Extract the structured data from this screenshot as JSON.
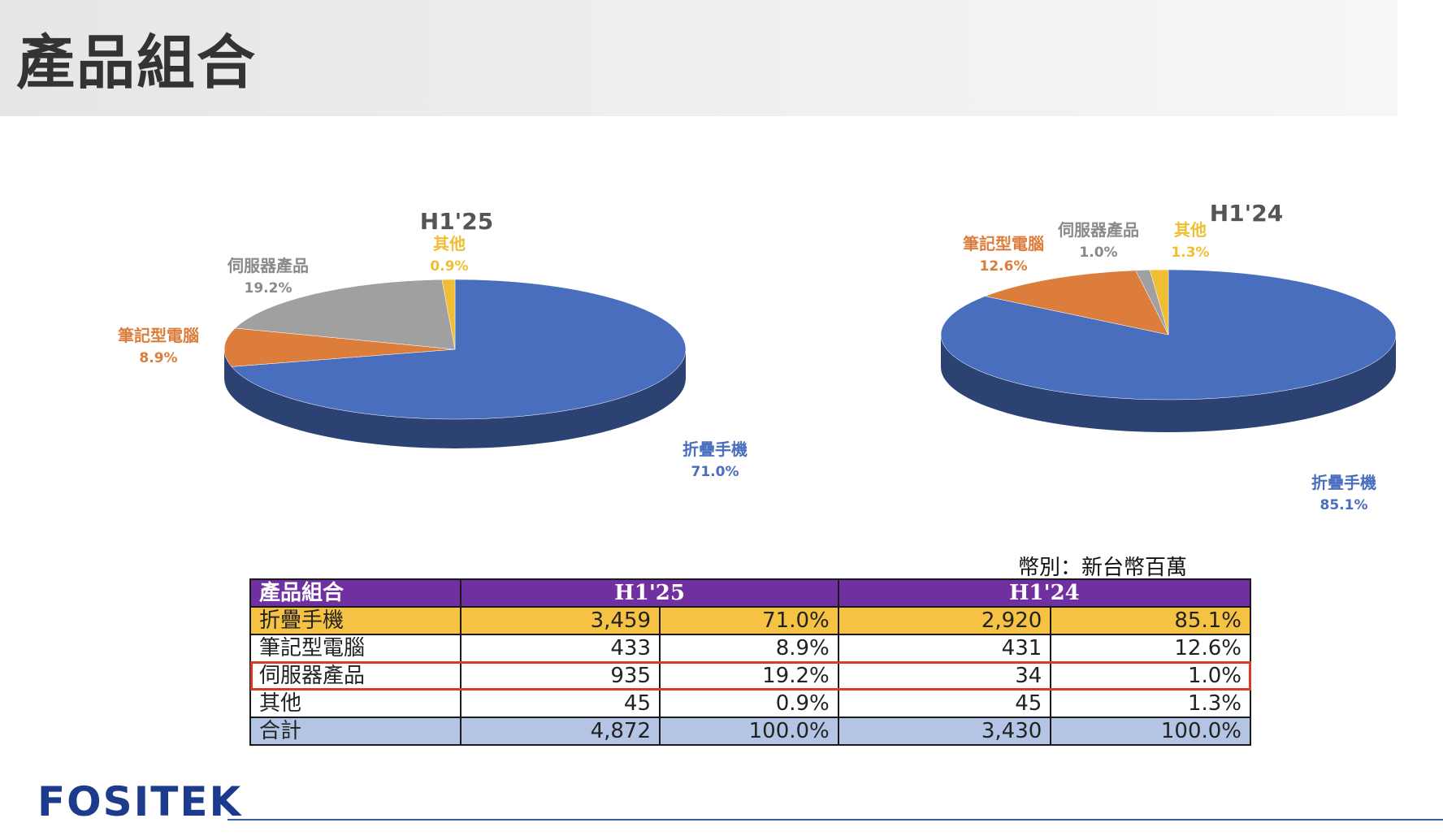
{
  "page": {
    "title": "產品組合"
  },
  "colors": {
    "foldable": "#4a6ebe",
    "notebook": "#dc7d3c",
    "server": "#a0a0a0",
    "other": "#f0be32",
    "header_purple": "#7030a0",
    "highlight_yellow": "#f5c243",
    "total_blue": "#b4c4e4",
    "highlight_box": "#d53c28"
  },
  "chart_data": [
    {
      "type": "pie",
      "title": "H1'25",
      "slices": [
        {
          "name": "折疊手機",
          "value": 71.0,
          "label": "71.0%",
          "color": "#4a6ebe"
        },
        {
          "name": "筆記型電腦",
          "value": 8.9,
          "label": "8.9%",
          "color": "#dc7d3c"
        },
        {
          "name": "伺服器產品",
          "value": 19.2,
          "label": "19.2%",
          "color": "#a0a0a0"
        },
        {
          "name": "其他",
          "value": 0.9,
          "label": "0.9%",
          "color": "#f0be32"
        }
      ]
    },
    {
      "type": "pie",
      "title": "H1'24",
      "slices": [
        {
          "name": "折疊手機",
          "value": 85.1,
          "label": "85.1%",
          "color": "#4a6ebe"
        },
        {
          "name": "筆記型電腦",
          "value": 12.6,
          "label": "12.6%",
          "color": "#dc7d3c"
        },
        {
          "name": "伺服器產品",
          "value": 1.0,
          "label": "1.0%",
          "color": "#a0a0a0"
        },
        {
          "name": "其他",
          "value": 1.3,
          "label": "1.3%",
          "color": "#f0be32"
        }
      ]
    }
  ],
  "table": {
    "unit_note": "幣別：新台幣百萬",
    "header": {
      "category": "產品組合",
      "period1": "H1'25",
      "period2": "H1'24"
    },
    "rows": [
      {
        "name": "折疊手機",
        "v1": "3,459",
        "p1": "71.0%",
        "v2": "2,920",
        "p2": "85.1%"
      },
      {
        "name": "筆記型電腦",
        "v1": "433",
        "p1": "8.9%",
        "v2": "431",
        "p2": "12.6%"
      },
      {
        "name": "伺服器產品",
        "v1": "935",
        "p1": "19.2%",
        "v2": "34",
        "p2": "1.0%"
      },
      {
        "name": "其他",
        "v1": "45",
        "p1": "0.9%",
        "v2": "45",
        "p2": "1.3%"
      },
      {
        "name": "合計",
        "v1": "4,872",
        "p1": "100.0%",
        "v2": "3,430",
        "p2": "100.0%"
      }
    ]
  },
  "footer": {
    "logo": "FOSITEK"
  }
}
